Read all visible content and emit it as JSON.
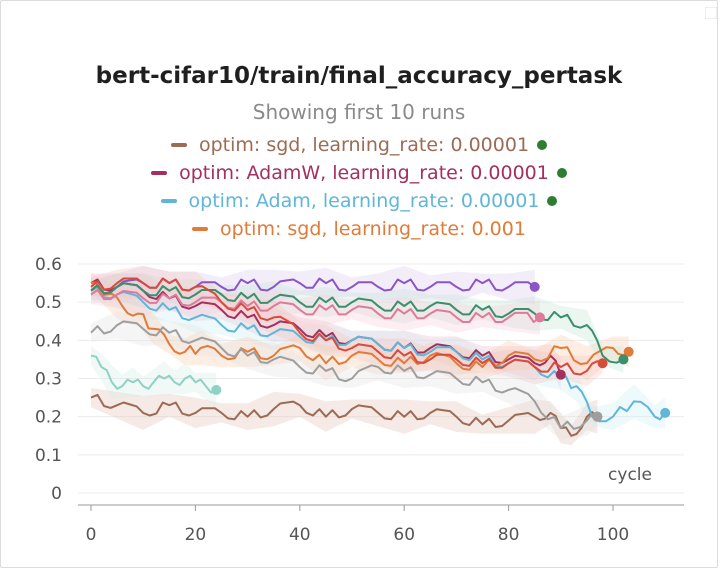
{
  "chart_data": {
    "type": "line",
    "title": "bert-cifar10/train/final_accuracy_pertask",
    "subtitle": "Showing first 10 runs",
    "xlabel": "cycle",
    "ylabel": "",
    "xlim": [
      0,
      112
    ],
    "ylim": [
      0,
      0.6
    ],
    "xticks": [
      0,
      20,
      40,
      60,
      80,
      100
    ],
    "xtick_labels": [
      "0",
      "20",
      "40",
      "60",
      "80",
      "100"
    ],
    "yticks": [
      0,
      0.1,
      0.2,
      0.3,
      0.4,
      0.5,
      0.6
    ],
    "ytick_labels": [
      "0",
      "0.1",
      "0.2",
      "0.3",
      "0.4",
      "0.5",
      "0.6"
    ],
    "grid": true,
    "legend_position": "top",
    "legend": [
      {
        "label": "optim: sgd, learning_rate: 0.00001",
        "color": "#9c6b55",
        "status_dot": true
      },
      {
        "label": "optim: AdamW, learning_rate: 0.00001",
        "color": "#a3305f",
        "status_dot": true
      },
      {
        "label": "optim: Adam, learning_rate: 0.00001",
        "color": "#5fb6d8",
        "status_dot": true
      },
      {
        "label": "optim: sgd, learning_rate: 0.001",
        "color": "#e07b39",
        "status_dot": false
      }
    ],
    "series": [
      {
        "color": "#9c6b55",
        "band_color": "#e3c2b4",
        "x": [
          0,
          5,
          10,
          15,
          20,
          25,
          30,
          35,
          40,
          45,
          50,
          55,
          60,
          65,
          70,
          75,
          80,
          85,
          88,
          90,
          92,
          95,
          97
        ],
        "y": [
          0.25,
          0.23,
          0.21,
          0.23,
          0.21,
          0.21,
          0.2,
          0.22,
          0.23,
          0.2,
          0.22,
          0.21,
          0.2,
          0.21,
          0.2,
          0.18,
          0.19,
          0.2,
          0.21,
          0.17,
          0.15,
          0.2,
          0.2
        ],
        "end_x": 97,
        "end_y": 0.2
      },
      {
        "color": "#a3305f",
        "band_color": "#f0b8cc",
        "x": [
          0,
          5,
          10,
          15,
          20,
          25,
          30,
          35,
          40,
          45,
          50,
          55,
          60,
          65,
          70,
          75,
          80,
          85,
          88,
          90
        ],
        "y": [
          0.55,
          0.54,
          0.53,
          0.51,
          0.49,
          0.48,
          0.46,
          0.44,
          0.43,
          0.41,
          0.4,
          0.39,
          0.38,
          0.38,
          0.37,
          0.36,
          0.35,
          0.34,
          0.36,
          0.31
        ],
        "end_x": 90,
        "end_y": 0.31
      },
      {
        "color": "#5fb6d8",
        "band_color": "#cdeef7",
        "x": [
          0,
          5,
          10,
          15,
          20,
          25,
          30,
          35,
          40,
          45,
          50,
          55,
          60,
          65,
          70,
          75,
          80,
          85,
          90,
          93,
          96,
          100,
          104,
          108,
          110
        ],
        "y": [
          0.53,
          0.52,
          0.5,
          0.48,
          0.46,
          0.44,
          0.43,
          0.42,
          0.41,
          0.4,
          0.4,
          0.39,
          0.38,
          0.37,
          0.37,
          0.35,
          0.34,
          0.33,
          0.3,
          0.28,
          0.2,
          0.2,
          0.24,
          0.2,
          0.21
        ],
        "end_x": 110,
        "end_y": 0.21
      },
      {
        "color": "#e07b39",
        "band_color": "#f8cdb0",
        "x": [
          0,
          3,
          6,
          9,
          12,
          15,
          18,
          21,
          25,
          30,
          35,
          40,
          45,
          50,
          55,
          60,
          65,
          70,
          75,
          80,
          85,
          90,
          95,
          100,
          103
        ],
        "y": [
          0.55,
          0.52,
          0.49,
          0.47,
          0.43,
          0.39,
          0.37,
          0.38,
          0.36,
          0.37,
          0.36,
          0.38,
          0.34,
          0.36,
          0.35,
          0.34,
          0.36,
          0.34,
          0.33,
          0.36,
          0.35,
          0.38,
          0.34,
          0.38,
          0.37
        ],
        "end_x": 103,
        "end_y": 0.37
      },
      {
        "color": "#8b55c7",
        "band_color": "#dccbf0",
        "x": [
          0,
          5,
          10,
          15,
          20,
          25,
          30,
          35,
          40,
          45,
          50,
          55,
          60,
          65,
          70,
          75,
          80,
          85
        ],
        "y": [
          0.53,
          0.54,
          0.55,
          0.55,
          0.54,
          0.54,
          0.55,
          0.54,
          0.55,
          0.55,
          0.54,
          0.54,
          0.55,
          0.54,
          0.54,
          0.55,
          0.54,
          0.54
        ],
        "end_x": 85,
        "end_y": 0.54
      },
      {
        "color": "#3a8f6e",
        "band_color": "#c6e6d8",
        "x": [
          0,
          5,
          10,
          15,
          20,
          25,
          30,
          35,
          40,
          45,
          50,
          55,
          60,
          65,
          70,
          75,
          80,
          85,
          90,
          95,
          98,
          102
        ],
        "y": [
          0.53,
          0.54,
          0.53,
          0.53,
          0.52,
          0.52,
          0.51,
          0.51,
          0.5,
          0.5,
          0.5,
          0.49,
          0.49,
          0.49,
          0.48,
          0.48,
          0.47,
          0.47,
          0.46,
          0.44,
          0.36,
          0.35
        ],
        "end_x": 102,
        "end_y": 0.35
      },
      {
        "color": "#e07a9a",
        "band_color": "#f6cfdc",
        "x": [
          0,
          5,
          10,
          15,
          20,
          25,
          30,
          35,
          40,
          45,
          50,
          55,
          60,
          65,
          70,
          75,
          80,
          86
        ],
        "y": [
          0.52,
          0.52,
          0.51,
          0.51,
          0.5,
          0.5,
          0.49,
          0.49,
          0.48,
          0.48,
          0.48,
          0.47,
          0.47,
          0.47,
          0.46,
          0.46,
          0.46,
          0.46
        ],
        "end_x": 86,
        "end_y": 0.46
      },
      {
        "color": "#9e9e9e",
        "band_color": "#e2e2e2",
        "x": [
          0,
          5,
          10,
          15,
          20,
          25,
          30,
          35,
          40,
          45,
          50,
          55,
          60,
          65,
          70,
          75,
          80,
          85,
          90,
          95,
          97
        ],
        "y": [
          0.42,
          0.44,
          0.43,
          0.42,
          0.4,
          0.38,
          0.36,
          0.35,
          0.33,
          0.32,
          0.3,
          0.33,
          0.32,
          0.31,
          0.3,
          0.29,
          0.27,
          0.24,
          0.17,
          0.19,
          0.2
        ],
        "end_x": 97,
        "end_y": 0.2
      },
      {
        "color": "#d84a3a",
        "band_color": "#f4c6bf",
        "x": [
          0,
          5,
          10,
          15,
          20,
          25,
          30,
          35,
          40,
          45,
          50,
          55,
          60,
          65,
          70,
          75,
          80,
          85,
          90,
          95,
          98
        ],
        "y": [
          0.54,
          0.55,
          0.55,
          0.55,
          0.54,
          0.5,
          0.48,
          0.46,
          0.42,
          0.4,
          0.38,
          0.37,
          0.36,
          0.35,
          0.35,
          0.34,
          0.34,
          0.33,
          0.33,
          0.32,
          0.34
        ],
        "end_x": 98,
        "end_y": 0.34
      },
      {
        "color": "#8fd1c4",
        "band_color": "#d6efe9",
        "x": [
          0,
          2,
          4,
          6,
          8,
          10,
          12,
          14,
          16,
          18,
          20,
          22,
          24
        ],
        "y": [
          0.36,
          0.33,
          0.29,
          0.28,
          0.29,
          0.28,
          0.29,
          0.3,
          0.29,
          0.3,
          0.29,
          0.28,
          0.27
        ],
        "end_x": 24,
        "end_y": 0.27
      }
    ]
  }
}
